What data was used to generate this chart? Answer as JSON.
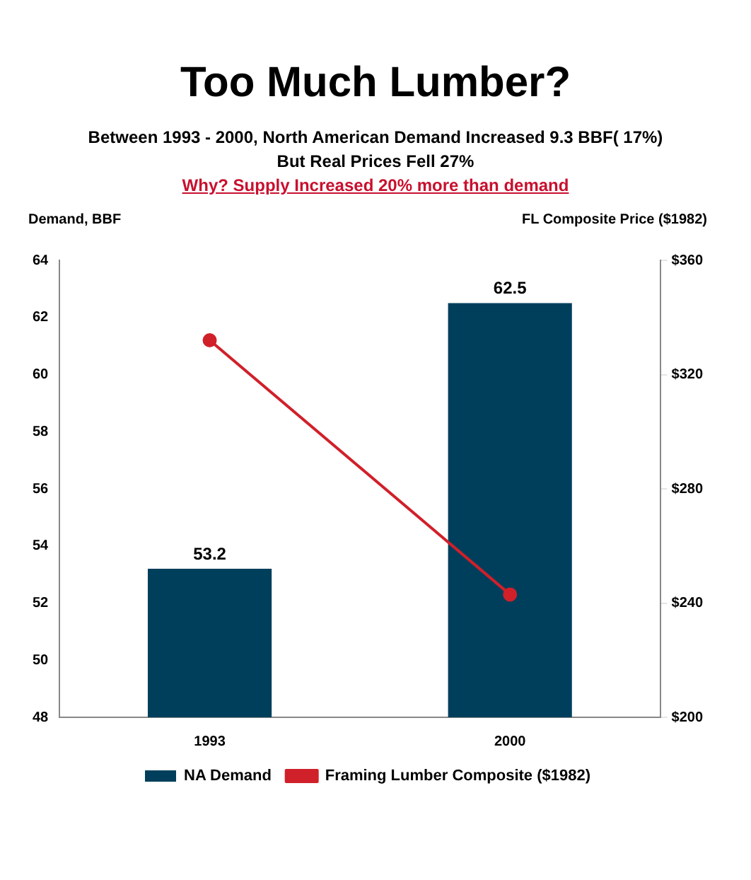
{
  "chart_data": {
    "type": "bar",
    "title": "Too Much Lumber?",
    "subtitle": "Between 1993  - 2000, North American Demand Increased 9.3 BBF( 17%)",
    "annotations": [
      "But Real Prices Fell 27%",
      "Why?  Supply Increased  20% more than demand"
    ],
    "xlabel": null,
    "ylabel": "Demand, BBF",
    "y2label": "FL Composite Price ($1982)",
    "categories": [
      "1993",
      "2000"
    ],
    "series": [
      {
        "name": "NA Demand",
        "color": "#003f5c",
        "values": [
          53.2,
          62.5
        ],
        "value_labels": [
          "53.2",
          "62.5"
        ]
      },
      {
        "name": "Framing Lumber Composite ($1982)",
        "type": "line",
        "axis": "y2",
        "color": "#d0202a",
        "values": [
          332,
          243
        ]
      }
    ],
    "ylim": [
      48,
      64
    ],
    "yticks": [
      48,
      50,
      52,
      54,
      56,
      58,
      60,
      62,
      64
    ],
    "y2lim": [
      200,
      360
    ],
    "y2ticks": [
      {
        "value": 200,
        "label": "$200"
      },
      {
        "value": 240,
        "label": "$240"
      },
      {
        "value": 280,
        "label": "$280"
      },
      {
        "value": 320,
        "label": "$320"
      },
      {
        "value": 360,
        "label": "$360"
      }
    ],
    "legend": "bottom",
    "grid": false,
    "marker": "circle",
    "line_style": "solid"
  }
}
